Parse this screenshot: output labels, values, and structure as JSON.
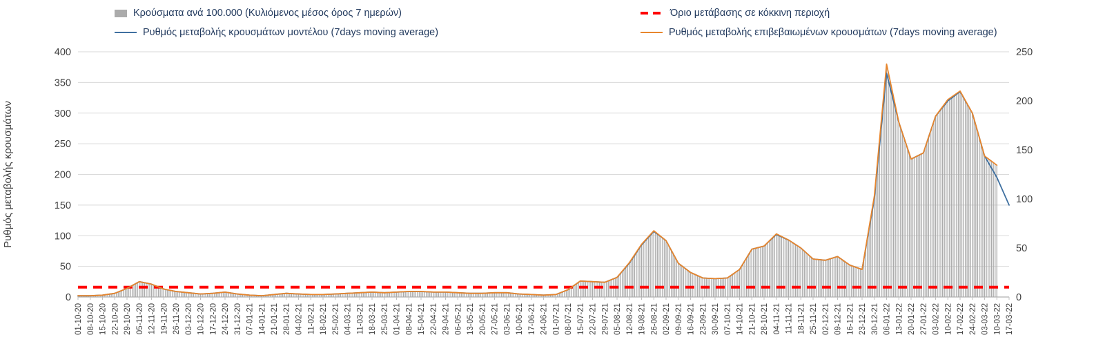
{
  "axes": {
    "y_left_label": "Ρυθμός μεταβολής κρουσμάτων",
    "y_left_ticks": [
      0,
      50,
      100,
      150,
      200,
      250,
      300,
      350,
      400
    ],
    "y_right_ticks": [
      0,
      50,
      100,
      150,
      200,
      250
    ],
    "y_left_max": 400,
    "y_right_max": 250
  },
  "colors": {
    "bars": "#ababab",
    "model_line": "#3f70a0",
    "confirmed_line": "#e8862d",
    "threshold": "#ff0000",
    "grid": "#d9d9d9",
    "tick_text": "#404040",
    "legend_text": "#223a5e"
  },
  "chart_data": {
    "type": "line",
    "subtype": "combo-bar-line-dual-axis",
    "title": "",
    "xlabel": "",
    "ylabel_left": "Ρυθμός μεταβολής κρουσμάτων",
    "ylim_left": [
      0,
      400
    ],
    "ylim_right": [
      0,
      250
    ],
    "grid": true,
    "legend_position": "top",
    "categories": [
      "01-10-20",
      "08-10-20",
      "15-10-20",
      "22-10-20",
      "29-10-20",
      "05-11-20",
      "12-11-20",
      "19-11-20",
      "26-11-20",
      "03-12-20",
      "10-12-20",
      "17-12-20",
      "24-12-20",
      "31-12-20",
      "07-01-21",
      "14-01-21",
      "21-01-21",
      "28-01-21",
      "04-02-21",
      "11-02-21",
      "18-02-21",
      "25-02-21",
      "04-03-21",
      "11-03-21",
      "18-03-21",
      "25-03-21",
      "01-04-21",
      "08-04-21",
      "15-04-21",
      "22-04-21",
      "29-04-21",
      "06-05-21",
      "13-05-21",
      "20-05-21",
      "27-05-21",
      "03-06-21",
      "10-06-21",
      "17-06-21",
      "24-06-21",
      "01-07-21",
      "08-07-21",
      "15-07-21",
      "22-07-21",
      "29-07-21",
      "05-08-21",
      "12-08-21",
      "19-08-21",
      "26-08-21",
      "02-09-21",
      "09-09-21",
      "16-09-21",
      "23-09-21",
      "30-09-21",
      "07-10-21",
      "14-10-21",
      "21-10-21",
      "28-10-21",
      "04-11-21",
      "11-11-21",
      "18-11-21",
      "25-11-21",
      "02-12-21",
      "09-12-21",
      "16-12-21",
      "23-12-21",
      "30-12-21",
      "06-01-22",
      "13-01-22",
      "20-01-22",
      "27-01-22",
      "03-02-22",
      "10-02-22",
      "17-02-22",
      "24-02-22",
      "03-03-22",
      "10-03-22",
      "17-03-22"
    ],
    "series": [
      {
        "name": "Κρούσματα ανά 100.000 (Κυλιόμενος μέσος όρος 7 ημερών)",
        "type": "bar",
        "axis": "right",
        "color": "#ababab",
        "values": [
          1.3,
          1.3,
          1.9,
          3.8,
          8.8,
          15.6,
          13.1,
          8.1,
          5.6,
          4.4,
          3.1,
          3.8,
          5,
          3.1,
          1.9,
          1.3,
          2.5,
          3.8,
          3.1,
          2.5,
          2.5,
          3.1,
          3.8,
          4.4,
          5,
          4.4,
          5,
          5.6,
          5.6,
          5,
          5,
          4.4,
          3.8,
          3.8,
          4.4,
          4.4,
          3.1,
          2.5,
          1.9,
          2.5,
          7.5,
          16.3,
          15.6,
          15,
          20,
          35,
          53.8,
          67.5,
          57.5,
          34.4,
          25,
          19.4,
          18.8,
          19.4,
          28.1,
          48.8,
          51.9,
          64.4,
          58.1,
          50,
          38.8,
          37.5,
          41.3,
          32.5,
          28.1,
          103.1,
          237.5,
          178.1,
          140.6,
          146.9,
          184.4,
          201.3,
          210,
          187.5,
          143.8,
          134.4,
          null
        ]
      },
      {
        "name": "Ρυθμός μεταβολής κρουσμάτων μοντέλου (7days moving average)",
        "type": "line",
        "axis": "left",
        "color": "#3f70a0",
        "values": [
          2,
          2,
          3,
          6,
          14,
          25,
          21,
          13,
          9,
          7,
          5,
          6,
          8,
          5,
          3,
          2,
          4,
          6,
          5,
          4,
          4,
          5,
          6,
          7,
          8,
          7,
          8,
          9,
          9,
          8,
          8,
          7,
          6,
          6,
          7,
          7,
          5,
          4,
          3,
          4,
          12,
          26,
          25,
          24,
          32,
          55,
          85,
          107,
          92,
          55,
          40,
          31,
          30,
          31,
          45,
          78,
          83,
          102,
          93,
          80,
          62,
          60,
          66,
          52,
          45,
          160,
          365,
          285,
          225,
          235,
          295,
          320,
          335,
          300,
          230,
          195,
          150
        ]
      },
      {
        "name": "Ρυθμός μεταβολής επιβεβαιωμένων κρουσμάτων (7days moving average)",
        "type": "line",
        "axis": "left",
        "color": "#e8862d",
        "values": [
          2,
          2,
          3,
          6,
          14,
          25,
          21,
          13,
          9,
          7,
          5,
          6,
          8,
          5,
          3,
          2,
          4,
          6,
          5,
          4,
          4,
          5,
          6,
          7,
          8,
          7,
          8,
          9,
          9,
          8,
          8,
          7,
          6,
          6,
          7,
          7,
          5,
          4,
          3,
          4,
          12,
          26,
          25,
          24,
          32,
          56,
          86,
          108,
          92,
          55,
          40,
          31,
          30,
          31,
          45,
          78,
          83,
          103,
          93,
          80,
          62,
          60,
          66,
          52,
          45,
          165,
          380,
          285,
          225,
          235,
          295,
          322,
          336,
          300,
          230,
          215,
          null
        ]
      },
      {
        "name": "Όριο μετάβασης σε κόκκινη περιοχή",
        "type": "threshold",
        "axis": "right",
        "value": 10,
        "color": "#ff0000"
      }
    ]
  }
}
